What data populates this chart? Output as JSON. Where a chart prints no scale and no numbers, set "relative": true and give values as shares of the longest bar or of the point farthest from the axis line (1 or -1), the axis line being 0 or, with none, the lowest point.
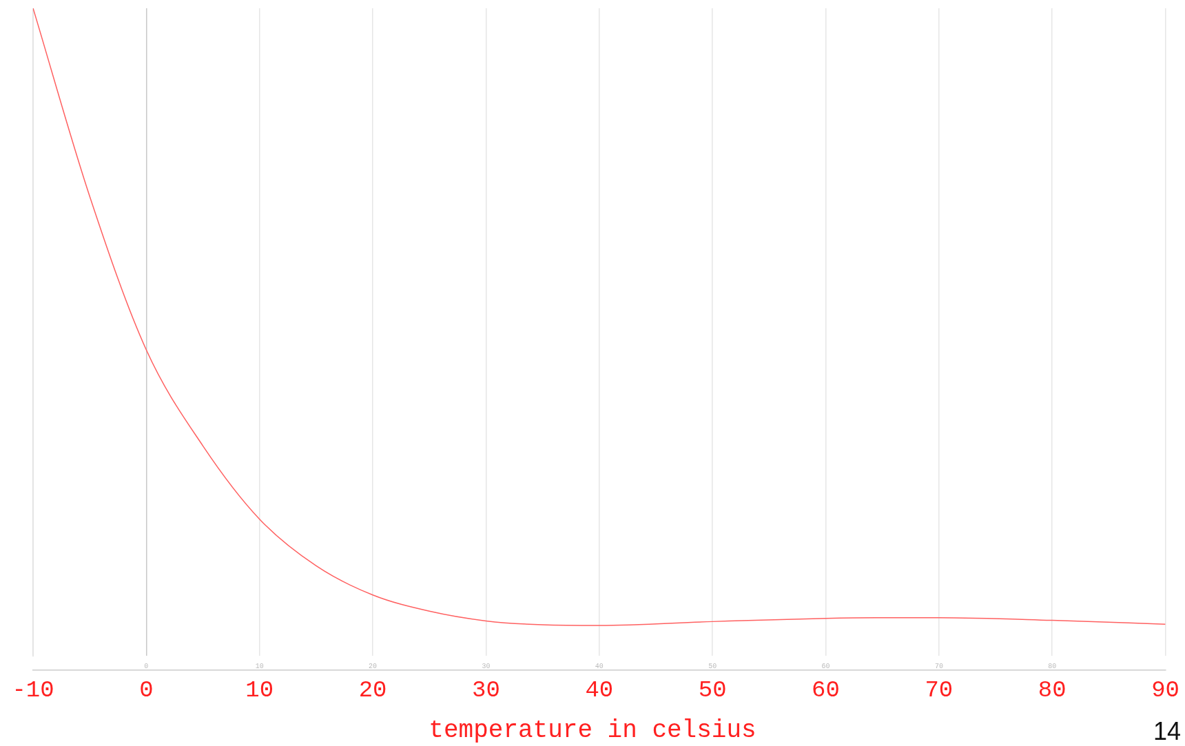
{
  "chart_data": {
    "type": "line",
    "relative": true,
    "xlabel": "temperature in celsius",
    "x": [
      -10,
      -5,
      0,
      5,
      10,
      15,
      20,
      25,
      30,
      35,
      40,
      50,
      60,
      65,
      70,
      80,
      90
    ],
    "series": [
      {
        "color": "#ff6060",
        "values": [
          1,
          0.71,
          0.473,
          0.325,
          0.212,
          0.14,
          0.095,
          0.07,
          0.055,
          0.049,
          0.048,
          0.054,
          0.059,
          0.06,
          0.06,
          0.056,
          0.05
        ]
      }
    ],
    "xlim": [
      -10,
      90
    ],
    "xticks": [
      -10,
      0,
      10,
      20,
      30,
      40,
      50,
      60,
      70,
      80,
      90
    ],
    "x2lim": [
      -10,
      90
    ],
    "x2ticks": [
      0,
      10,
      20,
      30,
      40,
      50,
      60,
      70,
      80
    ],
    "grid": "x",
    "legend": false,
    "marker": "none",
    "line_style": "solid",
    "annotations": [
      "14"
    ]
  }
}
